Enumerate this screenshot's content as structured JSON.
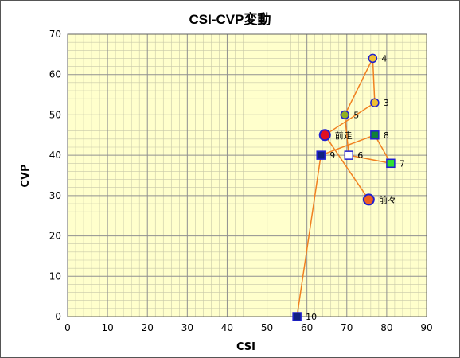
{
  "chart_data": {
    "type": "scatter",
    "title": "CSI-CVP変動",
    "xlabel": "CSI",
    "ylabel": "CVP",
    "xlim": [
      0,
      90
    ],
    "ylim": [
      0,
      70
    ],
    "xticks": [
      0,
      10,
      20,
      30,
      40,
      50,
      60,
      70,
      80,
      90
    ],
    "yticks": [
      0,
      10,
      20,
      30,
      40,
      50,
      60,
      70
    ],
    "grid": true,
    "colors": {
      "plot_bg": "#FFFFCC",
      "grid_major": "#909090",
      "grid_minor": "#C8C8A8",
      "line": "#F08020"
    },
    "path_order": [
      "前々",
      "前走",
      "3",
      "4",
      "5",
      "6",
      "7",
      "8",
      "9",
      "10"
    ],
    "points": [
      {
        "label": "前々",
        "x": 75.5,
        "y": 29,
        "marker": "circle-large",
        "fill": "#F06020",
        "stroke": "#2020D0"
      },
      {
        "label": "前走",
        "x": 64.5,
        "y": 45,
        "marker": "circle-large",
        "fill": "#E01020",
        "stroke": "#2020D0"
      },
      {
        "label": "3",
        "x": 77,
        "y": 53,
        "marker": "circle",
        "fill": "#F0C030",
        "stroke": "#2020D0"
      },
      {
        "label": "4",
        "x": 76.5,
        "y": 64,
        "marker": "circle",
        "fill": "#F0C030",
        "stroke": "#2020D0"
      },
      {
        "label": "5",
        "x": 69.5,
        "y": 50,
        "marker": "circle",
        "fill": "#90B020",
        "stroke": "#2020D0"
      },
      {
        "label": "6",
        "x": 70.5,
        "y": 40,
        "marker": "square",
        "fill": "#FFFFFF",
        "stroke": "#2020D0"
      },
      {
        "label": "7",
        "x": 81,
        "y": 38,
        "marker": "square",
        "fill": "#30E030",
        "stroke": "#2020D0"
      },
      {
        "label": "8",
        "x": 77,
        "y": 45,
        "marker": "square",
        "fill": "#10803A",
        "stroke": "#2020D0"
      },
      {
        "label": "9",
        "x": 63.5,
        "y": 40,
        "marker": "square",
        "fill": "#102080",
        "stroke": "#2020D0"
      },
      {
        "label": "10",
        "x": 57.5,
        "y": 0,
        "marker": "square",
        "fill": "#102080",
        "stroke": "#2020D0"
      }
    ]
  }
}
